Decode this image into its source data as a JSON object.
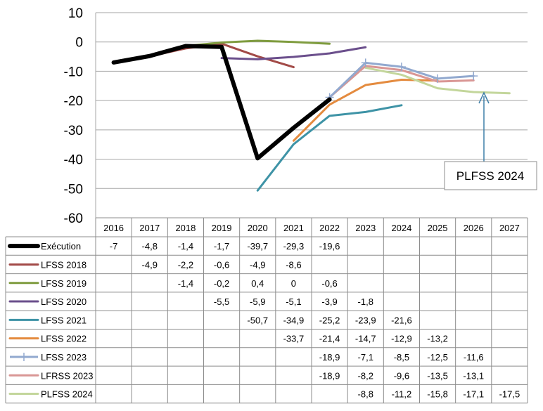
{
  "chart_data": {
    "type": "line",
    "categories": [
      "2016",
      "2017",
      "2018",
      "2019",
      "2020",
      "2021",
      "2022",
      "2023",
      "2024",
      "2025",
      "2026",
      "2027"
    ],
    "ylim": [
      -60,
      10
    ],
    "yticks": [
      "10",
      "0",
      "-10",
      "-20",
      "-30",
      "-40",
      "-50",
      "-60"
    ],
    "grid": "horizontal",
    "legend": "data-table-below",
    "annotation": "PLFSS 2024",
    "series": [
      {
        "name": "Exécution",
        "color": "#000000",
        "width": 6,
        "marker": false,
        "values": [
          -7,
          -4.8,
          -1.4,
          -1.7,
          -39.7,
          -29.3,
          -19.6,
          null,
          null,
          null,
          null,
          null
        ],
        "labels": [
          "-7",
          "-4,8",
          "-1,4",
          "-1,7",
          "-39,7",
          "-29,3",
          "-19,6",
          "",
          "",
          "",
          "",
          ""
        ]
      },
      {
        "name": "LFSS 2018",
        "color": "#a24a47",
        "width": 3,
        "marker": false,
        "values": [
          null,
          -4.9,
          -2.2,
          -0.6,
          -4.9,
          -8.6,
          null,
          null,
          null,
          null,
          null,
          null
        ],
        "labels": [
          "",
          "-4,9",
          "-2,2",
          "-0,6",
          "-4,9",
          "-8,6",
          "",
          "",
          "",
          "",
          "",
          ""
        ]
      },
      {
        "name": "LFSS 2019",
        "color": "#7f9c3f",
        "width": 3,
        "marker": false,
        "values": [
          null,
          null,
          -1.4,
          -0.2,
          0.4,
          0,
          -0.6,
          null,
          null,
          null,
          null,
          null
        ],
        "labels": [
          "",
          "",
          "-1,4",
          "-0,2",
          "0,4",
          "0",
          "-0,6",
          "",
          "",
          "",
          "",
          ""
        ]
      },
      {
        "name": "LFSS 2020",
        "color": "#6b4f8c",
        "width": 3,
        "marker": false,
        "values": [
          null,
          null,
          null,
          -5.5,
          -5.9,
          -5.1,
          -3.9,
          -1.8,
          null,
          null,
          null,
          null
        ],
        "labels": [
          "",
          "",
          "",
          "-5,5",
          "-5,9",
          "-5,1",
          "-3,9",
          "-1,8",
          "",
          "",
          "",
          ""
        ]
      },
      {
        "name": "LFSS 2021",
        "color": "#3e93a6",
        "width": 3,
        "marker": false,
        "values": [
          null,
          null,
          null,
          null,
          -50.7,
          -34.9,
          -25.2,
          -23.9,
          -21.6,
          null,
          null,
          null
        ],
        "labels": [
          "",
          "",
          "",
          "",
          "-50,7",
          "-34,9",
          "-25,2",
          "-23,9",
          "-21,6",
          "",
          "",
          ""
        ]
      },
      {
        "name": "LFSS 2022",
        "color": "#e48b3f",
        "width": 3,
        "marker": false,
        "values": [
          null,
          null,
          null,
          null,
          null,
          -33.7,
          -21.4,
          -14.7,
          -12.9,
          -13.2,
          null,
          null
        ],
        "labels": [
          "",
          "",
          "",
          "",
          "",
          "-33,7",
          "-21,4",
          "-14,7",
          "-12,9",
          "-13,2",
          "",
          ""
        ]
      },
      {
        "name": "LFSS 2023",
        "color": "#92a9cf",
        "width": 3,
        "marker": true,
        "values": [
          null,
          null,
          null,
          null,
          null,
          null,
          -18.9,
          -7.1,
          -8.5,
          -12.5,
          -11.6,
          null
        ],
        "labels": [
          "",
          "",
          "",
          "",
          "",
          "",
          "-18,9",
          "-7,1",
          "-8,5",
          "-12,5",
          "-11,6",
          ""
        ]
      },
      {
        "name": "LFRSS 2023",
        "color": "#d99694",
        "width": 3,
        "marker": false,
        "values": [
          null,
          null,
          null,
          null,
          null,
          null,
          -18.9,
          -8.2,
          -9.6,
          -13.5,
          -13.1,
          null
        ],
        "labels": [
          "",
          "",
          "",
          "",
          "",
          "",
          "-18,9",
          "-8,2",
          "-9,6",
          "-13,5",
          "-13,1",
          ""
        ]
      },
      {
        "name": "PLFSS 2024",
        "color": "#c3d69b",
        "width": 3,
        "marker": false,
        "values": [
          null,
          null,
          null,
          null,
          null,
          null,
          null,
          -8.8,
          -11.2,
          -15.8,
          -17.1,
          -17.5
        ],
        "labels": [
          "",
          "",
          "",
          "",
          "",
          "",
          "",
          "-8,8",
          "-11,2",
          "-15,8",
          "-17,1",
          "-17,5"
        ]
      }
    ]
  }
}
